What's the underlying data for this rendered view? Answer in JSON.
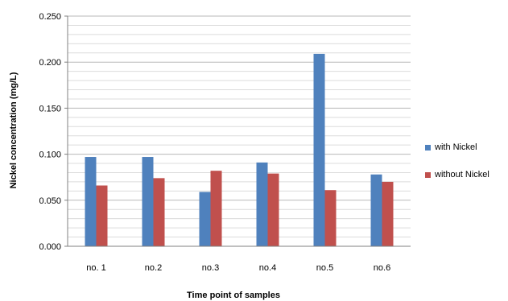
{
  "chart_data": {
    "type": "bar",
    "categories": [
      "no. 1",
      "no.2",
      "no.3",
      "no.4",
      "no.5",
      "no.6"
    ],
    "series": [
      {
        "name": "with Nickel",
        "values": [
          0.097,
          0.097,
          0.059,
          0.091,
          0.209,
          0.078
        ],
        "color": "#4f81bd"
      },
      {
        "name": "without Nickel",
        "values": [
          0.066,
          0.074,
          0.082,
          0.079,
          0.061,
          0.07
        ],
        "color": "#c0504d"
      }
    ],
    "title": "",
    "xlabel": "Time point of samples",
    "ylabel": "Nickel concentration (mg/L)",
    "ylim": [
      0,
      0.25
    ],
    "yticks": [
      "0.000",
      "0.050",
      "0.100",
      "0.150",
      "0.200",
      "0.250"
    ],
    "grid": true,
    "legend_position": "right"
  }
}
